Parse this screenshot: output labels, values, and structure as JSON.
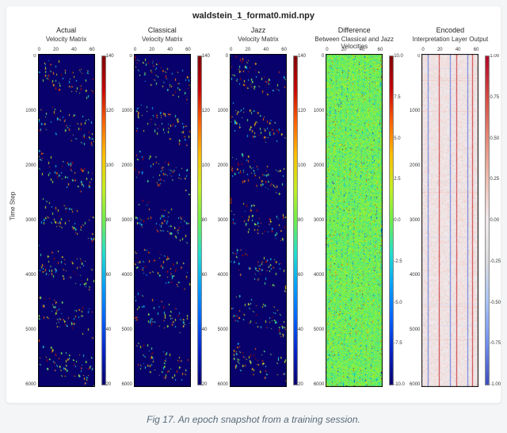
{
  "figure": {
    "main_title": "waldstein_1_format0.mid.npy",
    "background_color": "#f3f5f7",
    "frame_color": "#ffffff",
    "caption": "Fig 17. An epoch snapshot from a training session.",
    "global_ylabel": "Time Step",
    "y_ticks": [
      "0",
      "1000",
      "2000",
      "3000",
      "4000",
      "5000",
      "6000"
    ],
    "x_ticks": [
      "0",
      "20",
      "40",
      "60"
    ],
    "panels": [
      {
        "id": "actual",
        "title": "Actual",
        "subtitle": "Velocity Matrix",
        "type": "heatmap",
        "colormap": "jet",
        "background": "#08006b",
        "cbar_range": [
          20,
          140
        ],
        "cbar_ticks": [
          "140",
          "120",
          "100",
          "80",
          "60",
          "40",
          "20"
        ],
        "seed": 11
      },
      {
        "id": "classical",
        "title": "Classical",
        "subtitle": "Velocity Matrix",
        "type": "heatmap",
        "colormap": "jet",
        "background": "#08006b",
        "cbar_range": [
          20,
          140
        ],
        "cbar_ticks": [
          "140",
          "120",
          "100",
          "80",
          "60",
          "40",
          "20"
        ],
        "seed": 12
      },
      {
        "id": "jazz",
        "title": "Jazz",
        "subtitle": "Velocity Matrix",
        "type": "heatmap",
        "colormap": "jet",
        "background": "#08006b",
        "cbar_range": [
          20,
          140
        ],
        "cbar_ticks": [
          "140",
          "120",
          "100",
          "80",
          "60",
          "40",
          "20"
        ],
        "seed": 13
      },
      {
        "id": "difference",
        "title": "Difference",
        "subtitle": "Between Classical and Jazz Velocities",
        "type": "heatmap",
        "colormap": "jet",
        "background": "#6ff04a",
        "cbar_range": [
          -10,
          10
        ],
        "cbar_ticks": [
          "10.0",
          "7.5",
          "5.0",
          "2.5",
          "0.0",
          "-2.5",
          "-5.0",
          "-7.5",
          "-10.0"
        ],
        "seed": 21
      },
      {
        "id": "encoded",
        "title": "Encoded",
        "subtitle": "Interpretation Layer Output",
        "type": "heatmap",
        "colormap": "coolwarm",
        "background": "#f5eef2",
        "cbar_range": [
          -1,
          1
        ],
        "cbar_ticks": [
          "1.00",
          "0.75",
          "0.50",
          "0.25",
          "0.00",
          "-0.25",
          "-0.50",
          "-0.75",
          "-1.00"
        ],
        "seed": 31
      }
    ],
    "colormaps": {
      "jet": [
        "#08006b",
        "#0020c8",
        "#0060ff",
        "#00a0ff",
        "#20e0d0",
        "#6ff04a",
        "#c8f020",
        "#ffc000",
        "#ff6000",
        "#c80000",
        "#800000"
      ],
      "coolwarm": [
        "#3b4cc0",
        "#6f90f0",
        "#a8c4fb",
        "#dcdde0",
        "#f5eef2",
        "#f2c0b2",
        "#e88a76",
        "#d64b40",
        "#b40426"
      ]
    }
  }
}
